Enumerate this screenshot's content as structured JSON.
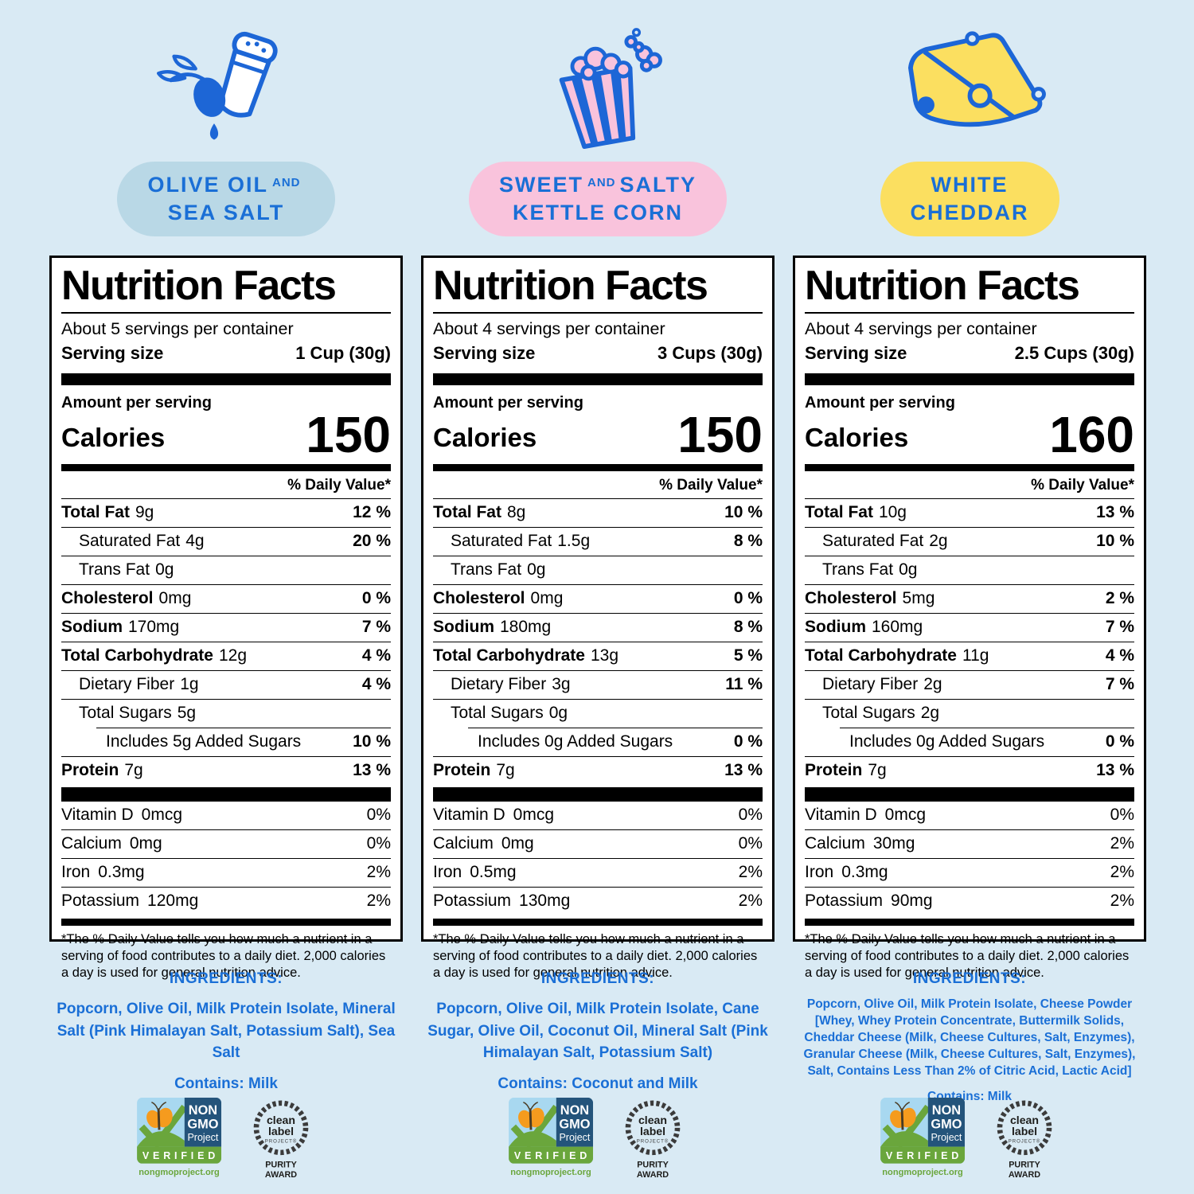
{
  "colors": {
    "blue": "#1a6fd6",
    "background": "#d9eaf4",
    "pill_blue": "#b9d8e6",
    "pill_pink": "#f9c3dc",
    "pill_yellow": "#fbdf60",
    "icon_blue": "#1d66d6",
    "nongmo_navy": "#24547b",
    "nongmo_sky": "#a8d8f0",
    "nongmo_green": "#6aa63c",
    "butterfly_orange": "#f59b1e",
    "laurel_gray": "#3b3b3b"
  },
  "flavors": [
    {
      "line1a": "OLIVE OIL",
      "and": "AND",
      "line1b": "",
      "line2": "SEA SALT",
      "pill_color": "#b9d8e6",
      "icon": "salt-shaker-olive-icon"
    },
    {
      "line1a": "SWEET",
      "and": "AND",
      "line1b": "SALTY",
      "line2": "KETTLE CORN",
      "pill_color": "#f9c3dc",
      "icon": "popcorn-box-icon"
    },
    {
      "line1a": "WHITE",
      "and": "",
      "line1b": "",
      "line2": "CHEDDAR",
      "pill_color": "#fbdf60",
      "icon": "cheese-wedge-icon"
    }
  ],
  "label_template": {
    "title": "Nutrition Facts",
    "amount_per_serving": "Amount per serving",
    "calories_label": "Calories",
    "dv_header": "% Daily Value*",
    "ingredients_heading": "INGREDIENTS:",
    "footnote": "*The % Daily Value tells you how much a nutrient in a serving of food contributes to a daily diet. 2,000 calories a day is used for general nutrition advice."
  },
  "panels": [
    {
      "servings": "About 5 servings per container",
      "serving_size_label": "Serving size",
      "serving_size_value": "1 Cup (30g)",
      "calories": "150",
      "rows": [
        {
          "name": "Total Fat",
          "amount": "9g",
          "dv": "12 %",
          "bold": true,
          "indent": 0
        },
        {
          "name": "Saturated Fat",
          "amount": "4g",
          "dv": "20 %",
          "bold": false,
          "indent": 1
        },
        {
          "name": "Trans Fat",
          "amount": "0g",
          "dv": "",
          "bold": false,
          "indent": 1
        },
        {
          "name": "Cholesterol",
          "amount": "0mg",
          "dv": "0 %",
          "bold": true,
          "indent": 0
        },
        {
          "name": "Sodium",
          "amount": "170mg",
          "dv": "7 %",
          "bold": true,
          "indent": 0
        },
        {
          "name": "Total Carbohydrate",
          "amount": "12g",
          "dv": "4 %",
          "bold": true,
          "indent": 0
        },
        {
          "name": "Dietary Fiber",
          "amount": "1g",
          "dv": "4 %",
          "bold": false,
          "indent": 1
        },
        {
          "name": "Total Sugars",
          "amount": "5g",
          "dv": "",
          "bold": false,
          "indent": 1
        },
        {
          "name": "Includes 5g Added Sugars",
          "amount": "",
          "dv": "10 %",
          "bold": false,
          "indent": 2
        },
        {
          "name": "Protein",
          "amount": "7g",
          "dv": "13 %",
          "bold": true,
          "indent": 0
        }
      ],
      "vitamins": [
        {
          "name": "Vitamin D",
          "amount": "0mcg",
          "dv": "0%"
        },
        {
          "name": "Calcium",
          "amount": "0mg",
          "dv": "0%"
        },
        {
          "name": "Iron",
          "amount": "0.3mg",
          "dv": "2%"
        },
        {
          "name": "Potassium",
          "amount": "120mg",
          "dv": "2%"
        }
      ],
      "ingredients": "Popcorn, Olive Oil, Milk Protein Isolate, Mineral Salt (Pink Himalayan Salt, Potassium Salt), Sea Salt",
      "contains": "Contains: Milk"
    },
    {
      "servings": "About 4 servings per container",
      "serving_size_label": "Serving size",
      "serving_size_value": "3 Cups (30g)",
      "calories": "150",
      "rows": [
        {
          "name": "Total Fat",
          "amount": "8g",
          "dv": "10 %",
          "bold": true,
          "indent": 0
        },
        {
          "name": "Saturated Fat",
          "amount": "1.5g",
          "dv": "8 %",
          "bold": false,
          "indent": 1
        },
        {
          "name": "Trans Fat",
          "amount": "0g",
          "dv": "",
          "bold": false,
          "indent": 1
        },
        {
          "name": "Cholesterol",
          "amount": "0mg",
          "dv": "0 %",
          "bold": true,
          "indent": 0
        },
        {
          "name": "Sodium",
          "amount": "180mg",
          "dv": "8 %",
          "bold": true,
          "indent": 0
        },
        {
          "name": "Total Carbohydrate",
          "amount": "13g",
          "dv": "5 %",
          "bold": true,
          "indent": 0
        },
        {
          "name": "Dietary Fiber",
          "amount": "3g",
          "dv": "11 %",
          "bold": false,
          "indent": 1
        },
        {
          "name": "Total Sugars",
          "amount": "0g",
          "dv": "",
          "bold": false,
          "indent": 1
        },
        {
          "name": "Includes 0g Added Sugars",
          "amount": "",
          "dv": "0 %",
          "bold": false,
          "indent": 2
        },
        {
          "name": "Protein",
          "amount": "7g",
          "dv": "13 %",
          "bold": true,
          "indent": 0
        }
      ],
      "vitamins": [
        {
          "name": "Vitamin D",
          "amount": "0mcg",
          "dv": "0%"
        },
        {
          "name": "Calcium",
          "amount": "0mg",
          "dv": "0%"
        },
        {
          "name": "Iron",
          "amount": "0.5mg",
          "dv": "2%"
        },
        {
          "name": "Potassium",
          "amount": "130mg",
          "dv": "2%"
        }
      ],
      "ingredients": "Popcorn, Olive Oil, Milk Protein Isolate, Cane Sugar, Olive Oil, Coconut Oil, Mineral Salt (Pink Himalayan Salt, Potassium Salt)",
      "contains": "Contains: Coconut and Milk"
    },
    {
      "servings": "About 4 servings per container",
      "serving_size_label": "Serving size",
      "serving_size_value": "2.5 Cups (30g)",
      "calories": "160",
      "rows": [
        {
          "name": "Total Fat",
          "amount": "10g",
          "dv": "13 %",
          "bold": true,
          "indent": 0
        },
        {
          "name": "Saturated Fat",
          "amount": "2g",
          "dv": "10 %",
          "bold": false,
          "indent": 1
        },
        {
          "name": "Trans Fat",
          "amount": "0g",
          "dv": "",
          "bold": false,
          "indent": 1
        },
        {
          "name": "Cholesterol",
          "amount": "5mg",
          "dv": "2 %",
          "bold": true,
          "indent": 0
        },
        {
          "name": "Sodium",
          "amount": "160mg",
          "dv": "7 %",
          "bold": true,
          "indent": 0
        },
        {
          "name": "Total Carbohydrate",
          "amount": "11g",
          "dv": "4 %",
          "bold": true,
          "indent": 0
        },
        {
          "name": "Dietary Fiber",
          "amount": "2g",
          "dv": "7 %",
          "bold": false,
          "indent": 1
        },
        {
          "name": "Total Sugars",
          "amount": "2g",
          "dv": "",
          "bold": false,
          "indent": 1
        },
        {
          "name": "Includes 0g Added Sugars",
          "amount": "",
          "dv": "0 %",
          "bold": false,
          "indent": 2
        },
        {
          "name": "Protein",
          "amount": "7g",
          "dv": "13 %",
          "bold": true,
          "indent": 0
        }
      ],
      "vitamins": [
        {
          "name": "Vitamin D",
          "amount": "0mcg",
          "dv": "0%"
        },
        {
          "name": "Calcium",
          "amount": "30mg",
          "dv": "2%"
        },
        {
          "name": "Iron",
          "amount": "0.3mg",
          "dv": "2%"
        },
        {
          "name": "Potassium",
          "amount": "90mg",
          "dv": "2%"
        }
      ],
      "ingredients": "Popcorn, Olive Oil, Milk Protein Isolate, Cheese Powder [Whey, Whey Protein Concentrate, Buttermilk Solids, Cheddar Cheese (Milk, Cheese Cultures, Salt, Enzymes), Granular Cheese (Milk, Cheese Cultures, Salt, Enzymes), Salt, Contains Less Than 2% of Citric Acid, Lactic Acid]",
      "contains": "Contains: Milk"
    }
  ],
  "badges": {
    "non_gmo": {
      "line1": "NON",
      "line2": "GMO",
      "line3": "Project",
      "verified": "VERIFIED",
      "url": "nongmoproject.org"
    },
    "clean_label": {
      "line1": "clean",
      "line2": "label",
      "line3": "PROJECT®",
      "line4": "PURITY",
      "line5": "AWARD"
    }
  }
}
